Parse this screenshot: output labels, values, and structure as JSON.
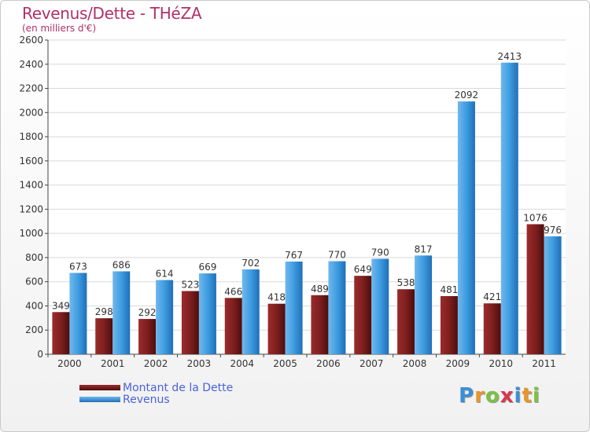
{
  "header": {
    "title": "Revenus/Dette - THéZA",
    "subtitle": "(en milliers d'€)"
  },
  "chart_data": {
    "type": "bar",
    "title": "Revenus/Dette - THéZA",
    "subtitle": "(en milliers d'€)",
    "xlabel": "",
    "ylabel": "",
    "categories": [
      "2000",
      "2001",
      "2002",
      "2003",
      "2004",
      "2005",
      "2006",
      "2007",
      "2008",
      "2009",
      "2010",
      "2011"
    ],
    "series": [
      {
        "name": "Montant de la Dette",
        "color": "#7a1d1d",
        "values": [
          349,
          298,
          292,
          523,
          466,
          418,
          489,
          649,
          538,
          481,
          421,
          1076
        ]
      },
      {
        "name": "Revenus",
        "color": "#3f9ce0",
        "values": [
          673,
          686,
          614,
          669,
          702,
          767,
          770,
          790,
          817,
          2092,
          2413,
          976
        ]
      }
    ],
    "ylim": [
      0,
      2600
    ],
    "yticks": [
      0,
      200,
      400,
      600,
      800,
      1000,
      1200,
      1400,
      1600,
      1800,
      2000,
      2200,
      2400,
      2600
    ],
    "grid": true,
    "legend_position": "bottom-left",
    "data_labels": true
  },
  "legend": {
    "items": [
      {
        "label": "Montant de la Dette",
        "color": "#7a1d1d"
      },
      {
        "label": "Revenus",
        "color": "#3f9ce0"
      }
    ]
  },
  "logo": {
    "text": "Proxiti",
    "letters": [
      "P",
      "r",
      "o",
      "x",
      "i",
      "t",
      "i"
    ],
    "colors": [
      "#3a8fd8",
      "#e8962a",
      "#7cc242",
      "#d9364f",
      "#3a8fd8",
      "#e8962a",
      "#7cc242"
    ]
  }
}
